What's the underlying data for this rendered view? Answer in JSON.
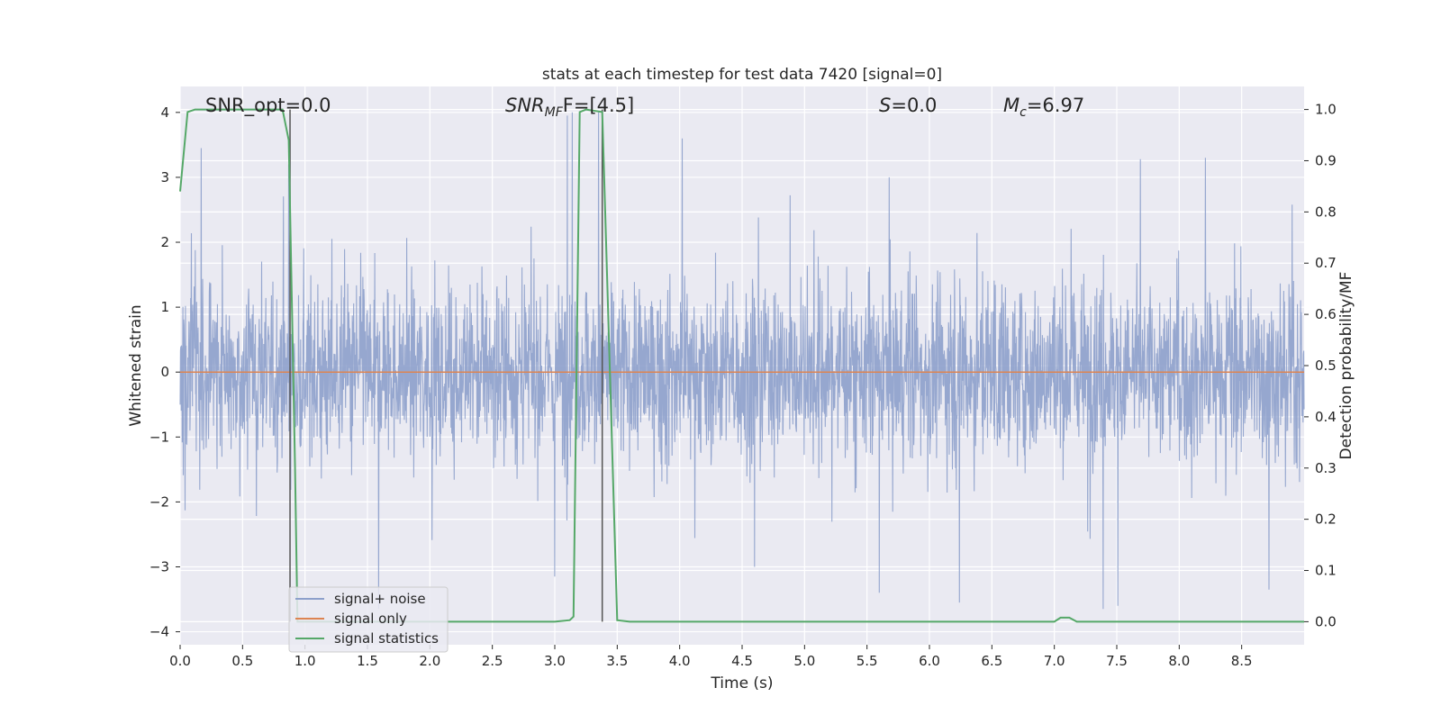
{
  "chart_data": {
    "type": "line",
    "title": "stats at each timestep for test data 7420 [signal=0]",
    "xlabel": "Time (s)",
    "ylabel_left": "Whitened strain",
    "ylabel_right": "Detection probability/MF",
    "xlim": [
      0.0,
      9.0
    ],
    "ylim_left": [
      -4.2,
      4.4
    ],
    "ylim_right": [
      -0.045,
      1.045
    ],
    "x_ticks": [
      "0.0",
      "0.5",
      "1.0",
      "1.5",
      "2.0",
      "2.5",
      "3.0",
      "3.5",
      "4.0",
      "4.5",
      "5.0",
      "5.5",
      "6.0",
      "6.5",
      "7.0",
      "7.5",
      "8.0",
      "8.5"
    ],
    "y_left_ticks": [
      "4",
      "3",
      "2",
      "1",
      "0",
      "−1",
      "−2",
      "−3",
      "−4"
    ],
    "y_right_ticks": [
      "1.0",
      "0.9",
      "0.8",
      "0.7",
      "0.6",
      "0.5",
      "0.4",
      "0.3",
      "0.2",
      "0.1",
      "0.0"
    ],
    "grid": true,
    "legend_position": "lower-left",
    "annotations": {
      "snr_opt": "SNR_opt=0.0",
      "snr_mf_base": "SNR",
      "snr_mf_sub": "MF",
      "snr_mf_value": "F=[4.5]",
      "s_italic": "S",
      "s_value": "=0.0",
      "mc_base": "M",
      "mc_sub": "c",
      "mc_value": "=6.97"
    },
    "series": [
      {
        "name": "signal+ noise",
        "color": "#8da0cb",
        "description": "whitened noise strain sampled over 0-9 s",
        "typical_band": [
          -1.5,
          1.5
        ],
        "notable_peaks": [
          {
            "x": 0.17,
            "y": 3.45
          },
          {
            "x": 0.87,
            "y": 3.2
          },
          {
            "x": 3.1,
            "y": 3.95
          },
          {
            "x": 3.14,
            "y": 4.0
          },
          {
            "x": 3.35,
            "y": 4.0
          },
          {
            "x": 4.02,
            "y": 3.6
          },
          {
            "x": 8.21,
            "y": 3.3
          },
          {
            "x": 7.69,
            "y": 3.28
          }
        ],
        "notable_troughs": [
          {
            "x": 1.59,
            "y": -3.65
          },
          {
            "x": 3.0,
            "y": -3.15
          },
          {
            "x": 5.6,
            "y": -3.4
          },
          {
            "x": 6.24,
            "y": -3.55
          },
          {
            "x": 7.39,
            "y": -3.65
          },
          {
            "x": 7.51,
            "y": -3.6
          },
          {
            "x": 8.72,
            "y": -3.35
          },
          {
            "x": 4.6,
            "y": -3.0
          }
        ]
      },
      {
        "name": "signal only",
        "color": "#dd8452",
        "x": [
          0.0,
          9.0
        ],
        "y": [
          0.0,
          0.0
        ]
      },
      {
        "name": "signal statistics",
        "color": "#55a868",
        "axis": "right",
        "x": [
          0.0,
          0.06,
          0.12,
          0.78,
          0.82,
          0.87,
          0.92,
          0.94,
          3.0,
          3.12,
          3.15,
          3.2,
          3.25,
          3.38,
          3.5,
          3.6,
          4.9,
          5.0,
          7.0,
          7.05,
          7.12,
          7.18,
          9.0
        ],
        "y": [
          0.84,
          0.995,
          1.0,
          1.0,
          1.0,
          0.94,
          0.3,
          0.0,
          0.0,
          0.003,
          0.01,
          0.995,
          1.0,
          0.995,
          0.003,
          0.0,
          0.0,
          0.0,
          0.0,
          0.008,
          0.008,
          0.0,
          0.0
        ]
      }
    ],
    "vertical_markers": [
      {
        "x": 0.88,
        "color": "#555555"
      },
      {
        "x": 3.38,
        "color": "#555555"
      }
    ]
  }
}
